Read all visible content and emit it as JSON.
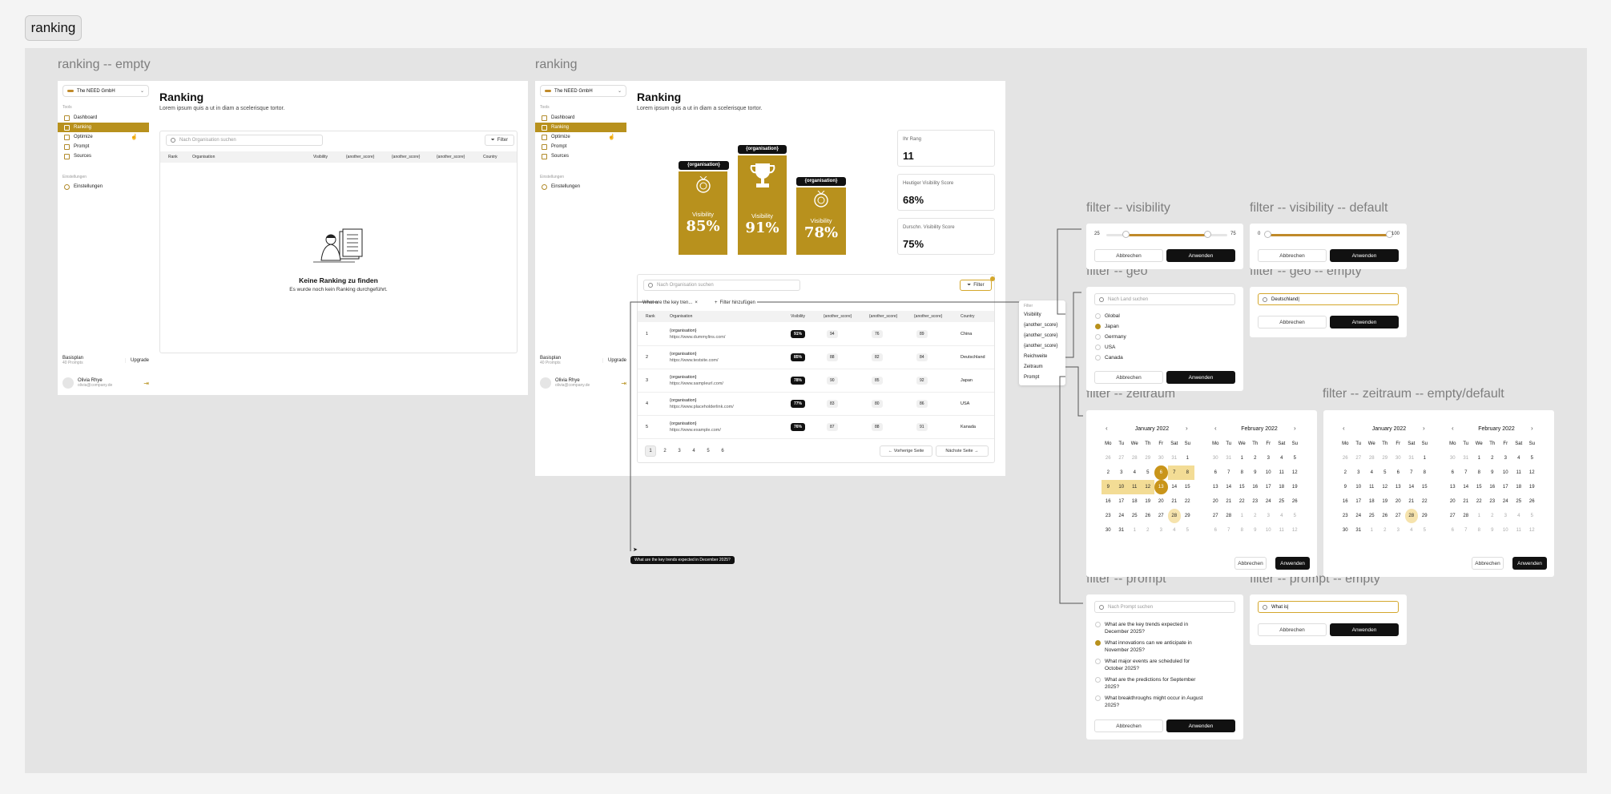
{
  "page_tag": "ranking",
  "frames": {
    "empty": {
      "label": "ranking -- empty"
    },
    "ranking": {
      "label": "ranking"
    },
    "f_visibility": {
      "label": "filter -- visibility"
    },
    "f_visibility_default": {
      "label": "filter -- visibility -- default"
    },
    "f_geo": {
      "label": "filter -- geo"
    },
    "f_geo_empty": {
      "label": "filter -- geo -- empty"
    },
    "f_zeitraum": {
      "label": "filter -- zeitraum"
    },
    "f_zeitraum_empty": {
      "label": "filter -- zeitraum -- empty/default"
    },
    "f_prompt": {
      "label": "filter -- prompt"
    },
    "f_prompt_empty": {
      "label": "filter -- prompt -- empty"
    }
  },
  "sidebar": {
    "org": "The NEED GmbH",
    "section_tools": "Tools",
    "items": [
      {
        "label": "Dashboard",
        "icon": "dashboard-icon"
      },
      {
        "label": "Ranking",
        "icon": "ranking-icon"
      },
      {
        "label": "Optimize",
        "icon": "optimize-icon"
      },
      {
        "label": "Prompt",
        "icon": "prompt-icon"
      },
      {
        "label": "Sources",
        "icon": "sources-icon"
      }
    ],
    "section_settings": "Einstellungen",
    "settings_item": "Einstellungen",
    "plan": "Basisplan",
    "plan_sub": "40 Prompts",
    "upgrade": "Upgrade",
    "user_name": "Olivia Rhye",
    "user_email": "olivia@company.de"
  },
  "header": {
    "title": "Ranking",
    "subtitle": "Lorem ipsum quis a ut in diam a scelerisque tortor."
  },
  "search": {
    "placeholder": "Nach Organisation suchen"
  },
  "filter_button": "Filter",
  "columns": [
    "Rank",
    "Organisation",
    "Visibility",
    "{another_score}",
    "{another_score}",
    "{another_score}",
    "Country"
  ],
  "empty_state": {
    "title": "Keine Ranking zu finden",
    "text": "Es wurde noch kein Ranking durchgeführt."
  },
  "podium": [
    {
      "tag": "{organisation}",
      "label": "Visibility",
      "value": "85%"
    },
    {
      "tag": "{organisation}",
      "label": "Visibility",
      "value": "91%"
    },
    {
      "tag": "{organisation}",
      "label": "Visibility",
      "value": "78%"
    }
  ],
  "stats": [
    {
      "label": "Ihr Rang",
      "value": "11"
    },
    {
      "label": "Heutiger Visibility Score",
      "value": "68%"
    },
    {
      "label": "Durschn. Visibility Score",
      "value": "75%"
    }
  ],
  "active_chip": "What are the key tren...",
  "add_filter": "Filter hinzufügen",
  "rows": [
    {
      "rank": "1",
      "org": "{organisation}",
      "url": "https://www.dummylins.com/",
      "vis": "91%",
      "s1": "94",
      "s2": "76",
      "s3": "89",
      "country": "China"
    },
    {
      "rank": "2",
      "org": "{organisation}",
      "url": "https://www.testsite.com/",
      "vis": "85%",
      "s1": "88",
      "s2": "82",
      "s3": "84",
      "country": "Deutschland"
    },
    {
      "rank": "3",
      "org": "{organisation}",
      "url": "https://www.sampleurl.com/",
      "vis": "78%",
      "s1": "90",
      "s2": "85",
      "s3": "92",
      "country": "Japan"
    },
    {
      "rank": "4",
      "org": "{organisation}",
      "url": "https://www.placeholderlink.com/",
      "vis": "77%",
      "s1": "83",
      "s2": "80",
      "s3": "86",
      "country": "USA"
    },
    {
      "rank": "5",
      "org": "{organisation}",
      "url": "https://www.example.com/",
      "vis": "76%",
      "s1": "87",
      "s2": "88",
      "s3": "91",
      "country": "Kanada"
    }
  ],
  "pagination": {
    "pages": [
      "1",
      "2",
      "3",
      "4",
      "5",
      "6"
    ],
    "prev": "Vorherige Seite",
    "next": "Nächste Seite"
  },
  "filter_menu": {
    "header": "Filter",
    "items": [
      "Visibility",
      "{another_score}",
      "{another_score}",
      "{another_score}",
      "Reichweite",
      "Zeitraum",
      "Prompt"
    ]
  },
  "tooltip": "What are the key trends expected in December 2025?",
  "buttons": {
    "cancel": "Abbrechen",
    "apply": "Anwenden"
  },
  "visibility": {
    "min": "25",
    "max": "75",
    "default_min": "0",
    "default_max": "100",
    "range": [
      25,
      75
    ],
    "default_range": [
      0,
      100
    ]
  },
  "geo": {
    "placeholder": "Nach Land suchen",
    "options": [
      {
        "label": "Global",
        "checked": false
      },
      {
        "label": "Japan",
        "checked": true
      },
      {
        "label": "Germany",
        "checked": false
      },
      {
        "label": "USA",
        "checked": false
      },
      {
        "label": "Canada",
        "checked": false
      }
    ],
    "typed": "Deutschland|"
  },
  "calendar": {
    "month1": "January 2022",
    "month2": "February 2022",
    "weekdays": [
      "Mo",
      "Tu",
      "We",
      "Th",
      "Fr",
      "Sat",
      "Su"
    ],
    "jan": [
      "26",
      "27",
      "28",
      "29",
      "30",
      "31",
      "1",
      "2",
      "3",
      "4",
      "5",
      "6",
      "7",
      "8",
      "9",
      "10",
      "11",
      "12",
      "13",
      "14",
      "15",
      "16",
      "17",
      "18",
      "19",
      "20",
      "21",
      "22",
      "23",
      "24",
      "25",
      "26",
      "27",
      "28",
      "29",
      "30",
      "31",
      "1",
      "2",
      "3",
      "4",
      "5"
    ],
    "feb": [
      "30",
      "31",
      "1",
      "2",
      "3",
      "4",
      "5",
      "6",
      "7",
      "8",
      "9",
      "10",
      "11",
      "12",
      "13",
      "14",
      "15",
      "16",
      "17",
      "18",
      "19",
      "20",
      "21",
      "22",
      "23",
      "24",
      "25",
      "26",
      "27",
      "28",
      "1",
      "2",
      "3",
      "4",
      "5",
      "6",
      "7",
      "8",
      "9",
      "10",
      "11",
      "12"
    ]
  },
  "prompt": {
    "placeholder": "Nach Prompt suchen",
    "options": [
      {
        "label": "What are the key trends expected in December 2025?",
        "checked": false
      },
      {
        "label": "What innovations can we anticipate in November 2025?",
        "checked": true
      },
      {
        "label": "What major events are scheduled for October 2025?",
        "checked": false
      },
      {
        "label": "What are the predictions for September 2025?",
        "checked": false
      },
      {
        "label": "What breakthroughs might occur in August 2025?",
        "checked": false
      }
    ],
    "typed": "What is|"
  },
  "colors": {
    "accent": "#b8911d",
    "dark": "#111111",
    "canvas": "#e4e4e4"
  }
}
